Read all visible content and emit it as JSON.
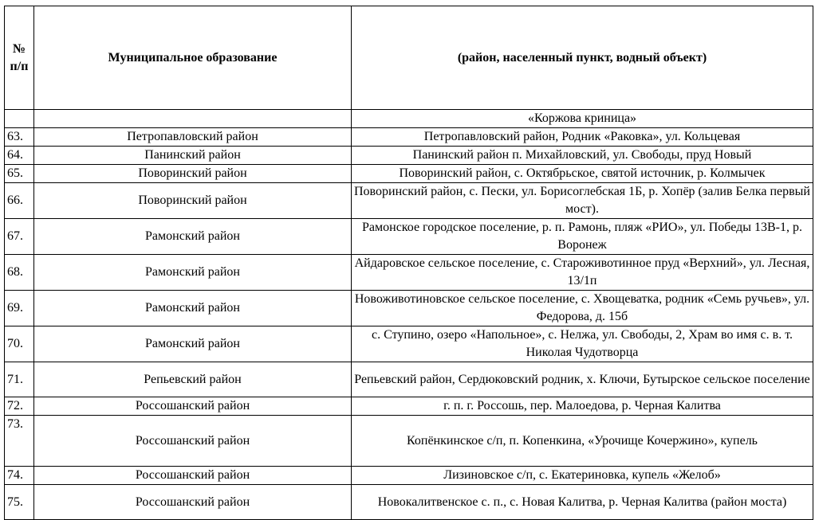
{
  "header": {
    "num": "№ п/п",
    "municipality": "Муниципальное образование",
    "location": "(район, населенный пункт, водный объект)"
  },
  "continuation": "«Коржова криница»",
  "rows": [
    {
      "num": "63.",
      "municipality": "Петропавловский район",
      "location": "Петропавловский район, Родник «Раковка», ул. Кольцевая"
    },
    {
      "num": "64.",
      "municipality": "Панинский район",
      "location": "Панинский район п. Михайловский, ул. Свободы, пруд Новый"
    },
    {
      "num": "65.",
      "municipality": "Поворинский район",
      "location": "Поворинский район, с. Октябрьское, святой источник, р. Колмычек"
    },
    {
      "num": "66.",
      "municipality": "Поворинский район",
      "location": "Поворинский район, с. Пески, ул. Борисоглебская 1Б, р. Хопёр (залив Белка первый мост)."
    },
    {
      "num": "67.",
      "municipality": "Рамонский район",
      "location": "Рамонское городское поселение, р. п. Рамонь, пляж «РИО», ул. Победы 13В-1, р. Воронеж"
    },
    {
      "num": "68.",
      "municipality": "Рамонский район",
      "location": "Айдаровское сельское поселение, с. Староживотинное пруд «Верхний», ул. Лесная, 13/1п"
    },
    {
      "num": "69.",
      "municipality": "Рамонский район",
      "location": "Новоживотиновское сельское поселение, с. Хвощеватка, родник «Семь ручьев», ул. Федорова, д. 15б"
    },
    {
      "num": "70.",
      "municipality": "Рамонский район",
      "location": "с. Ступино, озеро «Напольное», с. Нелжа, ул. Свободы, 2, Храм во имя с. в. т. Николая Чудотворца"
    },
    {
      "num": "71.",
      "municipality": "Репьевский район",
      "location": "Репьевский район, Сердюковский родник, х. Ключи, Бутырское сельское поселение"
    },
    {
      "num": "72.",
      "municipality": "Россошанский район",
      "location": "г. п. г. Россошь, пер. Малоедова, р. Черная Калитва"
    },
    {
      "num": "73.",
      "municipality": "Россошанский район",
      "location": "Копёнкинское с/п, п. Копенкина, «Урочище Кочержино», купель"
    },
    {
      "num": "74.",
      "municipality": "Россошанский район",
      "location": "Лизиновское с/п, с. Екатериновка, купель «Желоб»"
    },
    {
      "num": "75.",
      "municipality": "Россошанский район",
      "location": "Новокалитвенское с. п., с. Новая Калитва, р. Черная Калитва (район моста)"
    }
  ]
}
